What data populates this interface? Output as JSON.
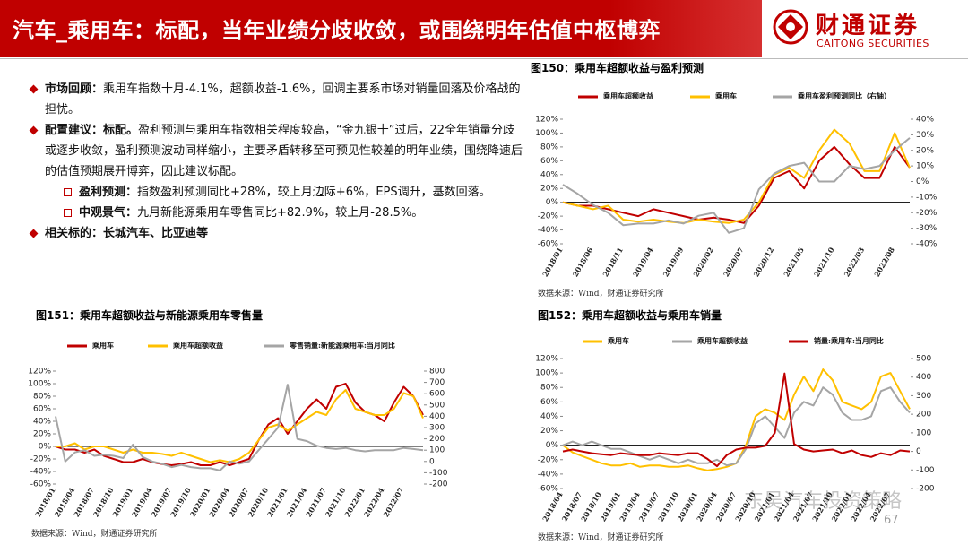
{
  "header": {
    "title": "汽车_乘用车：标配，当年业绩分歧收敛，或围绕明年估值中枢博弈",
    "logo_cn": "财通证券",
    "logo_en": "CAITONG SECURITIES"
  },
  "points": [
    {
      "label": "市场回顾：",
      "text": "乘用车指数十月-4.1%，超额收益-1.6%，回调主要系市场对销量回落及价格战的担忧。"
    },
    {
      "label": "配置建议：标配。",
      "text": "盈利预测与乘用车指数相关程度较高，“金九银十”过后，22全年销量分歧或逐步收敛，盈利预测波动同样缩小，主要矛盾转移至可预见性较差的明年业绩，围绕降速后的估值预期展开博弈，因此建议标配。",
      "items": [
        {
          "label": "盈利预测：",
          "text": "指数盈利预测同比+28%，较上月边际+6%，EPS调升，基数回落。"
        },
        {
          "label": "中观景气：",
          "text": "九月新能源乘用车零售同比+82.9%，较上月-28.5%。"
        }
      ]
    },
    {
      "label": "相关标的：长城汽车、比亚迪等"
    }
  ],
  "chart_data": [
    {
      "type": "line",
      "title": "图150：乘用车超额收益与盈利预测",
      "source": "数据来源：Wind，财通证券研究所",
      "categories": [
        "2018/01",
        null,
        "2018/06",
        null,
        "2018/11",
        null,
        "2019/04",
        null,
        "2019/09",
        null,
        "2020/02",
        null,
        "2020/07",
        null,
        "2020/12",
        null,
        "2021/05",
        null,
        "2021/10",
        null,
        "2022/03",
        null,
        "2022/08",
        null
      ],
      "series": [
        {
          "name": "乘用车超额收益",
          "color": "#c00000",
          "values": [
            0,
            -5,
            -5,
            -10,
            -15,
            -20,
            -10,
            -15,
            -20,
            -25,
            -22,
            -25,
            -30,
            -5,
            35,
            45,
            20,
            60,
            80,
            55,
            35,
            35,
            80,
            50
          ]
        },
        {
          "name": "乘用车",
          "color": "#ffc000",
          "values": [
            0,
            -5,
            -10,
            -5,
            -25,
            -28,
            -25,
            -28,
            -30,
            -25,
            -28,
            -30,
            -25,
            0,
            40,
            50,
            35,
            75,
            105,
            85,
            45,
            45,
            100,
            50
          ]
        },
        {
          "name": "乘用车盈利预测同比（右轴）",
          "color": "#a5a5a5",
          "axis": "y2",
          "values": [
            -2,
            -8,
            -15,
            -20,
            -28,
            -27,
            -27,
            -25,
            -27,
            -22,
            -20,
            -33,
            -30,
            -5,
            5,
            10,
            12,
            0,
            0,
            10,
            8,
            10,
            20,
            28
          ]
        }
      ],
      "ylim": [
        -60,
        120
      ],
      "yticks": [
        {
          "value": -60,
          "label": "-60%"
        },
        {
          "value": -40,
          "label": "-40%"
        },
        {
          "value": -20,
          "label": "-20%"
        },
        {
          "value": 0,
          "label": "0%"
        },
        {
          "value": 20,
          "label": "20%"
        },
        {
          "value": 40,
          "label": "40%"
        },
        {
          "value": 60,
          "label": "60%"
        },
        {
          "value": 80,
          "label": "80%"
        },
        {
          "value": 100,
          "label": "100%"
        },
        {
          "value": 120,
          "label": "120%"
        }
      ],
      "y2lim": [
        -40,
        40
      ],
      "y2ticks": [
        {
          "value": -40,
          "label": "-40%"
        },
        {
          "value": -30,
          "label": "-30%"
        },
        {
          "value": -20,
          "label": "-20%"
        },
        {
          "value": -10,
          "label": "-10%"
        },
        {
          "value": 0,
          "label": "0%"
        },
        {
          "value": 10,
          "label": "10%"
        },
        {
          "value": 20,
          "label": "20%"
        },
        {
          "value": 30,
          "label": "30%"
        },
        {
          "value": 40,
          "label": "40%"
        }
      ]
    },
    {
      "type": "line",
      "title": "图151：乘用车超额收益与新能源乘用车零售量",
      "source": "数据来源：Wind，财通证券研究所",
      "categories": [
        "2018/01",
        null,
        "2018/04",
        null,
        "2018/07",
        null,
        "2018/10",
        null,
        "2019/01",
        null,
        "2019/04",
        null,
        "2019/07",
        null,
        "2019/10",
        null,
        "2020/01",
        null,
        "2020/04",
        null,
        "2020/07",
        null,
        "2020/10",
        null,
        "2021/01",
        null,
        "2021/04",
        null,
        "2021/07",
        null,
        "2021/10",
        null,
        "2022/01",
        null,
        "2022/04",
        null,
        "2022/07",
        null,
        null
      ],
      "series": [
        {
          "name": "乘用车",
          "color": "#c00000",
          "values": [
            0,
            -5,
            -5,
            -10,
            -5,
            -15,
            -20,
            -25,
            -25,
            -20,
            -25,
            -28,
            -30,
            -28,
            -25,
            -30,
            -30,
            -25,
            -30,
            -25,
            -20,
            10,
            35,
            45,
            20,
            40,
            60,
            75,
            60,
            95,
            100,
            70,
            55,
            50,
            40,
            70,
            95,
            80,
            50
          ]
        },
        {
          "name": "乘用车超额收益",
          "color": "#ffc000",
          "values": [
            0,
            0,
            5,
            -5,
            0,
            0,
            -5,
            -10,
            -5,
            -10,
            -10,
            -12,
            -15,
            -10,
            -15,
            -20,
            -25,
            -22,
            -25,
            -20,
            -10,
            10,
            30,
            35,
            25,
            35,
            45,
            55,
            50,
            75,
            90,
            60,
            55,
            50,
            50,
            60,
            85,
            80,
            45
          ]
        },
        {
          "name": "零售销量:新能源乘用车:当月同比",
          "color": "#a5a5a5",
          "axis": "y2",
          "values": [
            400,
            0,
            80,
            100,
            50,
            60,
            50,
            30,
            150,
            40,
            0,
            -20,
            -50,
            -30,
            -50,
            -60,
            -60,
            -80,
            0,
            -20,
            0,
            100,
            200,
            300,
            680,
            200,
            180,
            140,
            120,
            110,
            120,
            100,
            90,
            100,
            100,
            100,
            120,
            110,
            100
          ]
        }
      ],
      "ylim": [
        -60,
        120
      ],
      "yticks": [
        {
          "value": -60,
          "label": "-60%"
        },
        {
          "value": -40,
          "label": "-40%"
        },
        {
          "value": -20,
          "label": "-20%"
        },
        {
          "value": 0,
          "label": "0%"
        },
        {
          "value": 20,
          "label": "20%"
        },
        {
          "value": 40,
          "label": "40%"
        },
        {
          "value": 60,
          "label": "60%"
        },
        {
          "value": 80,
          "label": "80%"
        },
        {
          "value": 100,
          "label": "100%"
        },
        {
          "value": 120,
          "label": "120%"
        }
      ],
      "y2lim": [
        -200,
        800
      ],
      "y2ticks": [
        -200,
        -100,
        0,
        100,
        200,
        300,
        400,
        500,
        600,
        700,
        800
      ]
    },
    {
      "type": "line",
      "title": "图152：乘用车超额收益与乘用车销量",
      "source": "数据来源：Wind，财通证券研究所",
      "categories": [
        "2018/04",
        null,
        "2018/07",
        null,
        "2018/10",
        null,
        "2019/01",
        null,
        "2019/04",
        null,
        "2019/07",
        null,
        "2019/10",
        null,
        "2020/01",
        null,
        "2020/04",
        null,
        "2020/07",
        null,
        "2020/10",
        null,
        "2021/01",
        null,
        "2021/04",
        null,
        "2021/07",
        null,
        "2021/10",
        null,
        "2022/01",
        null,
        "2022/04",
        null,
        "2022/07",
        null,
        null
      ],
      "series": [
        {
          "name": "乘用车",
          "color": "#ffc000",
          "values": [
            0,
            -10,
            -15,
            -20,
            -25,
            -28,
            -28,
            -25,
            -30,
            -28,
            -28,
            -30,
            -30,
            -28,
            -32,
            -35,
            -33,
            -30,
            -25,
            0,
            40,
            50,
            45,
            35,
            70,
            95,
            75,
            105,
            90,
            60,
            55,
            50,
            60,
            95,
            100,
            75,
            50
          ]
        },
        {
          "name": "乘用车超额收益",
          "color": "#a5a5a5",
          "values": [
            0,
            5,
            0,
            5,
            0,
            -5,
            -5,
            -10,
            -15,
            -20,
            -15,
            -20,
            -25,
            -20,
            -25,
            -25,
            -20,
            -28,
            -25,
            -5,
            30,
            40,
            25,
            10,
            45,
            60,
            55,
            80,
            70,
            45,
            35,
            35,
            40,
            75,
            80,
            60,
            45
          ]
        },
        {
          "name": "销量:乘用车:当月同比",
          "color": "#c00000",
          "axis": "y2",
          "values": [
            0,
            10,
            0,
            -10,
            -15,
            -20,
            -10,
            -15,
            -20,
            -20,
            -10,
            -15,
            -20,
            -10,
            -10,
            -40,
            -80,
            -20,
            10,
            20,
            20,
            30,
            100,
            420,
            40,
            10,
            0,
            5,
            10,
            -10,
            5,
            -20,
            -30,
            -10,
            -20,
            5,
            0
          ]
        }
      ],
      "ylim": [
        -60,
        120
      ],
      "yticks": [
        {
          "value": -60,
          "label": "-60%"
        },
        {
          "value": -40,
          "label": "-40%"
        },
        {
          "value": -20,
          "label": "-20%"
        },
        {
          "value": 0,
          "label": "0%"
        },
        {
          "value": 20,
          "label": "20%"
        },
        {
          "value": 40,
          "label": "40%"
        },
        {
          "value": 60,
          "label": "60%"
        },
        {
          "value": 80,
          "label": "80%"
        },
        {
          "value": 100,
          "label": "100%"
        },
        {
          "value": 120,
          "label": "120%"
        }
      ],
      "y2lim": [
        -200,
        500
      ],
      "y2ticks": [
        -200,
        -100,
        0,
        100,
        200,
        300,
        400,
        500
      ]
    }
  ],
  "footer": {
    "page": "67",
    "watermark": "东吴汽车投资策略"
  }
}
